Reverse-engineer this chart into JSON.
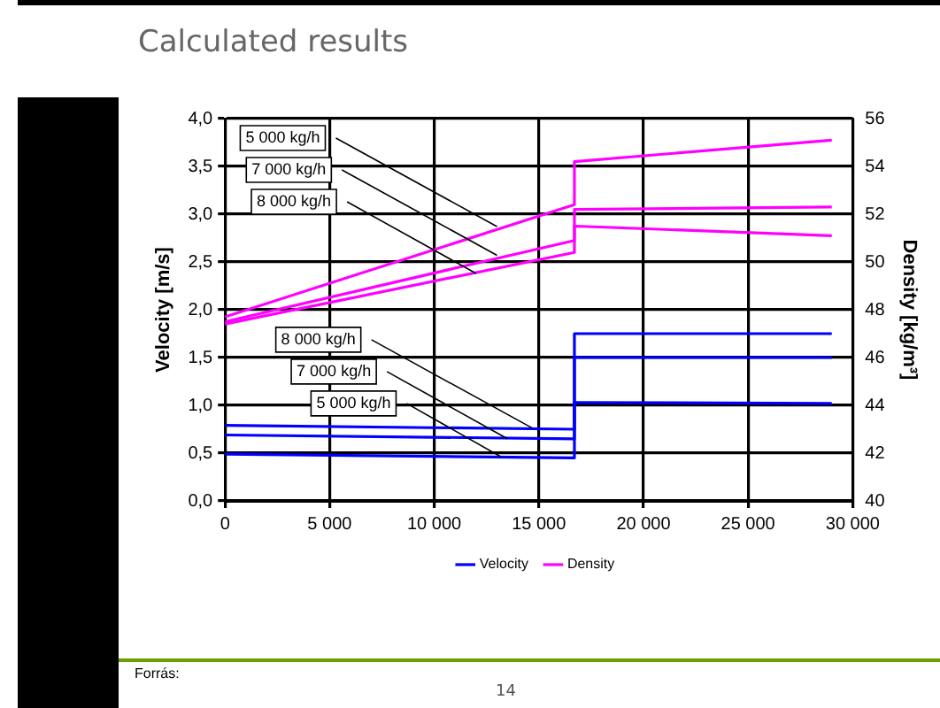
{
  "chart_data": {
    "type": "line",
    "title": "Calculated results",
    "ylabel": "Velocity [m/s]",
    "y2label": "Density [kg/m³]",
    "xlim": [
      0,
      30000
    ],
    "xticks": [
      {
        "value": 0,
        "label": "0"
      },
      {
        "value": 5000,
        "label": "5 000"
      },
      {
        "value": 10000,
        "label": "10 000"
      },
      {
        "value": 15000,
        "label": "15 000"
      },
      {
        "value": 20000,
        "label": "20 000"
      },
      {
        "value": 25000,
        "label": "25 000"
      },
      {
        "value": 30000,
        "label": "30 000"
      }
    ],
    "ylim": [
      0,
      4
    ],
    "yticks": [
      {
        "value": 0,
        "label": "0,0"
      },
      {
        "value": 0.5,
        "label": "0,5"
      },
      {
        "value": 1,
        "label": "1,0"
      },
      {
        "value": 1.5,
        "label": "1,5"
      },
      {
        "value": 2,
        "label": "2,0"
      },
      {
        "value": 2.5,
        "label": "2,5"
      },
      {
        "value": 3,
        "label": "3,0"
      },
      {
        "value": 3.5,
        "label": "3,5"
      },
      {
        "value": 4,
        "label": "4,0"
      }
    ],
    "y2lim": [
      40,
      56
    ],
    "y2ticks": [
      40,
      42,
      44,
      46,
      48,
      50,
      52,
      54,
      56
    ],
    "grid": true,
    "legend": "bottom",
    "marker": "none",
    "line_style": "solid",
    "series": [
      {
        "name": "Velocity",
        "color": "#0000ff",
        "x": [
          0,
          16700,
          16700,
          29000
        ],
        "values": [
          0.79,
          0.75,
          1.75,
          1.75
        ]
      },
      {
        "color": "#0000ff",
        "x": [
          0,
          16700,
          16700,
          29000
        ],
        "values": [
          0.69,
          0.65,
          1.5,
          1.5
        ]
      },
      {
        "color": "#0000ff",
        "x": [
          0,
          16700,
          16700,
          29000
        ],
        "values": [
          0.49,
          0.45,
          1.03,
          1.02
        ]
      },
      {
        "name": "Density",
        "color": "#ff00ff",
        "axis": "y2",
        "x": [
          0,
          16700,
          16700,
          29000
        ],
        "values": [
          47.7,
          52.4,
          54.2,
          55.1
        ]
      },
      {
        "color": "#ff00ff",
        "axis": "y2",
        "x": [
          0,
          16700,
          16700,
          29000
        ],
        "values": [
          47.5,
          50.9,
          52.2,
          52.3
        ]
      },
      {
        "color": "#ff00ff",
        "axis": "y2",
        "x": [
          0,
          16700,
          16700,
          29000
        ],
        "values": [
          47.4,
          50.4,
          51.5,
          51.1
        ]
      }
    ],
    "annotations": [
      {
        "text": "5 000 kg/h",
        "x": 13000,
        "y": 2.87
      },
      {
        "text": "7 000 kg/h",
        "x": 13000,
        "y": 2.57
      },
      {
        "text": "8 000 kg/h",
        "x": 12000,
        "y": 2.38
      },
      {
        "text": "8 000 kg/h",
        "x": 14700,
        "y": 0.76
      },
      {
        "text": "7 000 kg/h",
        "x": 13500,
        "y": 0.65
      },
      {
        "text": "5 000 kg/h",
        "x": 13200,
        "y": 0.46
      },
      "Forrás:",
      "14"
    ]
  }
}
